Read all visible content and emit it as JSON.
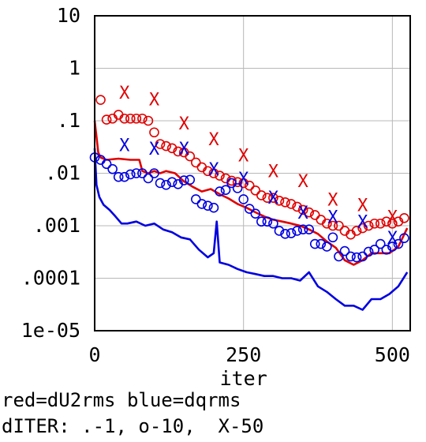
{
  "chart_data": {
    "type": "line",
    "title": "",
    "xlabel": "iter",
    "ylabel": "",
    "xlim": [
      0,
      530
    ],
    "ylim": [
      1e-05,
      10
    ],
    "yscale": "log",
    "grid": true,
    "x_ticks": [
      0,
      250,
      500
    ],
    "x_tick_labels": [
      "0",
      "250",
      "500"
    ],
    "y_ticks": [
      10,
      1,
      0.1,
      0.01,
      0.001,
      0.0001,
      1e-05
    ],
    "y_tick_labels": [
      "10",
      "1",
      ".1",
      ".01",
      ".001",
      ".0001",
      "1e-05"
    ],
    "series": [
      {
        "name": "dU2rms",
        "color": "#e00000",
        "line": {
          "x": [
            0,
            3,
            6,
            10,
            20,
            40,
            60,
            75,
            80,
            90,
            100,
            110,
            120,
            135,
            150,
            165,
            180,
            195,
            210,
            225,
            240,
            255,
            270,
            285,
            300,
            315,
            330,
            345,
            360,
            375,
            390,
            405,
            420,
            435,
            450,
            465,
            480,
            495,
            510,
            525
          ],
          "y": [
            0.1,
            0.05,
            0.025,
            0.02,
            0.018,
            0.019,
            0.018,
            0.018,
            0.011,
            0.01,
            0.011,
            0.01,
            0.011,
            0.01,
            0.007,
            0.0055,
            0.0045,
            0.005,
            0.004,
            0.0033,
            0.0026,
            0.0022,
            0.0018,
            0.0015,
            0.0013,
            0.0012,
            0.0011,
            0.001,
            0.00085,
            0.0007,
            0.0005,
            0.00038,
            0.00022,
            0.00018,
            0.00022,
            0.0003,
            0.0003,
            0.0003,
            0.0004,
            0.0009
          ]
        },
        "o_every_10": {
          "x": [
            10,
            20,
            30,
            40,
            50,
            60,
            70,
            80,
            90,
            100,
            110,
            120,
            130,
            140,
            150,
            160,
            170,
            180,
            190,
            200,
            210,
            220,
            230,
            240,
            250,
            260,
            270,
            280,
            290,
            300,
            310,
            320,
            330,
            340,
            350,
            360,
            370,
            380,
            390,
            400,
            410,
            420,
            430,
            440,
            450,
            460,
            470,
            480,
            490,
            500,
            510,
            520
          ],
          "y": [
            0.25,
            0.105,
            0.11,
            0.13,
            0.11,
            0.11,
            0.11,
            0.11,
            0.1,
            0.06,
            0.036,
            0.033,
            0.03,
            0.026,
            0.025,
            0.021,
            0.016,
            0.013,
            0.011,
            0.01,
            0.009,
            0.008,
            0.0072,
            0.0068,
            0.0065,
            0.0058,
            0.0047,
            0.0038,
            0.0034,
            0.0034,
            0.003,
            0.0028,
            0.0026,
            0.0023,
            0.002,
            0.0018,
            0.0016,
            0.0013,
            0.0011,
            0.001,
            0.001,
            0.0008,
            0.00068,
            0.0008,
            0.0009,
            0.001,
            0.0011,
            0.0011,
            0.0012,
            0.0011,
            0.0012,
            0.0014
          ]
        },
        "x_every_50": {
          "x": [
            50,
            100,
            150,
            200,
            250,
            300,
            350,
            400,
            450,
            500
          ],
          "y": [
            0.35,
            0.26,
            0.09,
            0.045,
            0.022,
            0.011,
            0.0072,
            0.0032,
            0.0025,
            0.0015
          ]
        }
      },
      {
        "name": "dqrms",
        "color": "#0000e0",
        "line": {
          "x": [
            0,
            3,
            8,
            15,
            25,
            35,
            45,
            55,
            70,
            85,
            100,
            115,
            130,
            145,
            160,
            175,
            190,
            200,
            205,
            210,
            225,
            240,
            255,
            270,
            285,
            300,
            315,
            330,
            345,
            360,
            375,
            390,
            405,
            420,
            435,
            450,
            465,
            480,
            495,
            510,
            525
          ],
          "y": [
            0.03,
            0.006,
            0.0035,
            0.0025,
            0.002,
            0.0015,
            0.0011,
            0.0011,
            0.0012,
            0.001,
            0.0011,
            0.00085,
            0.00075,
            0.0006,
            0.00055,
            0.00035,
            0.00025,
            0.0003,
            0.0012,
            0.0002,
            0.00018,
            0.00015,
            0.00013,
            0.00012,
            0.00011,
            0.00011,
            0.0001,
            0.0001,
            9e-05,
            0.00013,
            7e-05,
            5.5e-05,
            4e-05,
            3e-05,
            3e-05,
            2.5e-05,
            4e-05,
            4e-05,
            5e-05,
            7e-05,
            0.00013
          ]
        },
        "o_every_10": {
          "x": [
            0,
            10,
            20,
            30,
            40,
            50,
            60,
            70,
            80,
            90,
            100,
            110,
            120,
            130,
            140,
            150,
            160,
            170,
            180,
            190,
            200,
            210,
            220,
            230,
            240,
            250,
            260,
            270,
            280,
            290,
            300,
            310,
            320,
            330,
            340,
            350,
            360,
            370,
            380,
            390,
            400,
            410,
            420,
            430,
            440,
            450,
            460,
            470,
            480,
            490,
            500,
            510,
            520
          ],
          "y": [
            0.02,
            0.018,
            0.015,
            0.012,
            0.0085,
            0.0085,
            0.0095,
            0.01,
            0.01,
            0.008,
            0.01,
            0.0065,
            0.006,
            0.0068,
            0.0062,
            0.0073,
            0.0075,
            0.0032,
            0.0026,
            0.0024,
            0.0022,
            0.0045,
            0.0048,
            0.0065,
            0.0052,
            0.0032,
            0.0021,
            0.0017,
            0.0012,
            0.0012,
            0.0011,
            0.0008,
            0.0007,
            0.00072,
            0.0008,
            0.00085,
            0.00085,
            0.00045,
            0.00045,
            0.0004,
            0.0006,
            0.00026,
            0.00033,
            0.00026,
            0.00025,
            0.00026,
            0.00032,
            0.00035,
            0.00045,
            0.00035,
            0.0004,
            0.00045,
            0.00058
          ]
        },
        "x_every_50": {
          "x": [
            50,
            100,
            150,
            200,
            250,
            300,
            350,
            400,
            450,
            500
          ],
          "y": [
            0.035,
            0.03,
            0.03,
            0.012,
            0.008,
            0.0035,
            0.0018,
            0.0015,
            0.0012,
            0.0006
          ]
        }
      }
    ]
  },
  "legend_text": {
    "line1": "red=dU2rms blue=dqrms",
    "line2": "dITER: .-1, o-10,  X-50"
  }
}
